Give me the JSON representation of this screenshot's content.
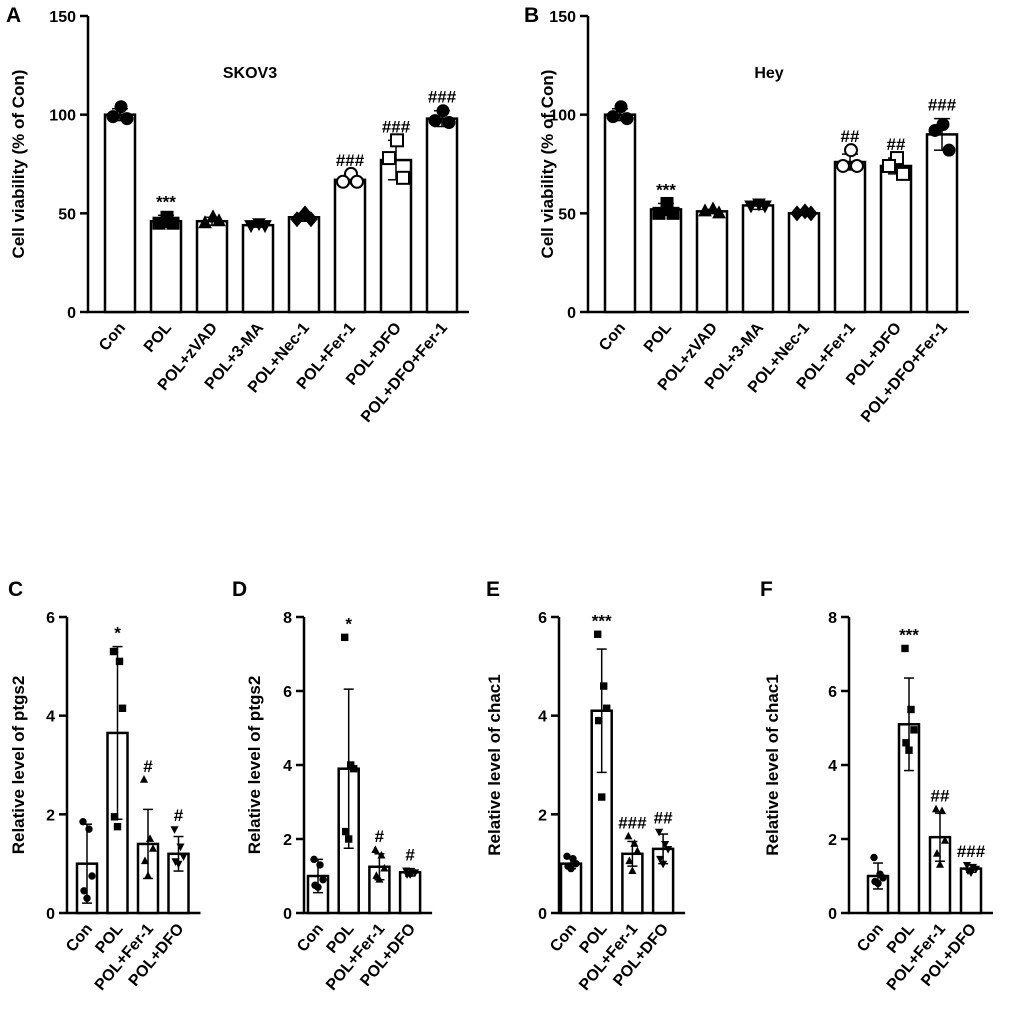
{
  "chart_data": [
    {
      "id": "A",
      "type": "bar",
      "title": "SKOV3",
      "ylabel": "Cell viability (% of Con)",
      "ylim": [
        0,
        150
      ],
      "yticks": [
        0,
        50,
        100,
        150
      ],
      "ytick_labels": [
        "0",
        "50",
        "100",
        "150"
      ],
      "categories": [
        "Con",
        "POL",
        "POL+zVAD",
        "POL+3-MA",
        "POL+Nec-1",
        "POL+Fer-1",
        "POL+DFO",
        "POL+DFO+Fer-1"
      ],
      "values": [
        100,
        46,
        46,
        44,
        48,
        67,
        77,
        98
      ],
      "errors": [
        3,
        3,
        2,
        1,
        2,
        2,
        10,
        4
      ],
      "points": [
        [
          104,
          99,
          98
        ],
        [
          48,
          45,
          45
        ],
        [
          48,
          45,
          46
        ],
        [
          45,
          44,
          44
        ],
        [
          50,
          47,
          47
        ],
        [
          70,
          66,
          66
        ],
        [
          87,
          78,
          68
        ],
        [
          102,
          97,
          96
        ]
      ],
      "marker": [
        "circle",
        "square",
        "triangle",
        "triangle-down",
        "diamond",
        "circle-open",
        "square-open",
        "circle"
      ],
      "annotations": [
        "",
        "***",
        "",
        "",
        "",
        "###",
        "###",
        "###"
      ]
    },
    {
      "id": "B",
      "type": "bar",
      "title": "Hey",
      "ylabel": "Cell viability (% of Con)",
      "ylim": [
        0,
        150
      ],
      "yticks": [
        0,
        50,
        100,
        150
      ],
      "ytick_labels": [
        "0",
        "50",
        "100",
        "150"
      ],
      "categories": [
        "Con",
        "POL",
        "POL+zVAD",
        "POL+3-MA",
        "POL+Nec-1",
        "POL+Fer-1",
        "POL+DFO",
        "POL+DFO+Fer-1"
      ],
      "values": [
        100,
        52,
        51,
        54,
        50,
        76,
        74,
        90
      ],
      "errors": [
        3,
        3,
        1,
        2,
        1,
        4,
        4,
        8
      ],
      "points": [
        [
          104,
          99,
          98
        ],
        [
          55,
          50,
          50
        ],
        [
          52,
          51,
          50
        ],
        [
          55,
          54,
          54
        ],
        [
          51,
          50,
          50
        ],
        [
          82,
          74,
          74
        ],
        [
          78,
          74,
          70
        ],
        [
          95,
          92,
          82
        ]
      ],
      "marker": [
        "circle",
        "square",
        "triangle",
        "triangle-down",
        "diamond",
        "circle-open",
        "square-open",
        "circle"
      ],
      "annotations": [
        "",
        "***",
        "",
        "",
        "",
        "##",
        "##",
        "###"
      ]
    },
    {
      "id": "C",
      "type": "bar",
      "ylabel": "Relative level of ptgs2",
      "ylim": [
        0,
        6
      ],
      "yticks": [
        0,
        2,
        4,
        6
      ],
      "ytick_labels": [
        "0",
        "2",
        "4",
        "6"
      ],
      "categories": [
        "Con",
        "POL",
        "POL+Fer-1",
        "POL+DFO"
      ],
      "values": [
        1.0,
        3.65,
        1.4,
        1.2
      ],
      "errors": [
        0.8,
        1.75,
        0.7,
        0.35
      ],
      "points": [
        [
          1.85,
          1.7,
          0.75,
          0.45,
          0.3
        ],
        [
          5.3,
          5.1,
          4.15,
          1.95,
          1.75
        ],
        [
          2.7,
          1.5,
          1.3,
          1.05,
          0.75
        ],
        [
          1.7,
          1.35,
          1.15,
          1.05,
          1.0
        ]
      ],
      "marker": [
        "circle",
        "square",
        "triangle",
        "triangle-down"
      ],
      "annotations": [
        "",
        "*",
        "#",
        "#"
      ]
    },
    {
      "id": "D",
      "type": "bar",
      "ylabel": "Relative level of ptgs2",
      "ylim": [
        0,
        8
      ],
      "yticks": [
        0,
        2,
        4,
        6,
        8
      ],
      "ytick_labels": [
        "0",
        "2",
        "4",
        "6",
        "8"
      ],
      "categories": [
        "Con",
        "POL",
        "POL+Fer-1",
        "POL+DFO"
      ],
      "values": [
        1.0,
        3.9,
        1.25,
        1.1
      ],
      "errors": [
        0.45,
        2.15,
        0.35,
        0.1
      ],
      "points": [
        [
          1.45,
          1.3,
          0.9,
          0.75,
          0.7
        ],
        [
          7.45,
          4.0,
          3.9,
          2.2,
          2.0
        ],
        [
          1.7,
          1.55,
          1.2,
          1.0,
          0.9
        ],
        [
          1.15,
          1.1,
          1.1,
          1.05,
          1.05
        ]
      ],
      "marker": [
        "circle",
        "square",
        "triangle",
        "triangle-down"
      ],
      "annotations": [
        "",
        "*",
        "#",
        "#"
      ]
    },
    {
      "id": "E",
      "type": "bar",
      "ylabel": "Relative level of chac1",
      "ylim": [
        0,
        6
      ],
      "yticks": [
        0,
        2,
        4,
        6
      ],
      "ytick_labels": [
        "0",
        "2",
        "4",
        "6"
      ],
      "categories": [
        "Con",
        "POL",
        "POL+Fer-1",
        "POL+DFO"
      ],
      "values": [
        1.0,
        4.1,
        1.2,
        1.3
      ],
      "errors": [
        0.1,
        1.25,
        0.25,
        0.3
      ],
      "points": [
        [
          1.15,
          1.1,
          1.0,
          0.95,
          0.9
        ],
        [
          5.65,
          4.6,
          4.15,
          3.9,
          2.35
        ],
        [
          1.55,
          1.4,
          1.25,
          1.05,
          0.85
        ],
        [
          1.65,
          1.4,
          1.3,
          1.1,
          1.0
        ]
      ],
      "marker": [
        "circle",
        "square",
        "triangle",
        "triangle-down"
      ],
      "annotations": [
        "",
        "***",
        "###",
        "##"
      ]
    },
    {
      "id": "F",
      "type": "bar",
      "ylabel": "Relative level of chac1",
      "ylim": [
        0,
        8
      ],
      "yticks": [
        0,
        2,
        4,
        6,
        8
      ],
      "ytick_labels": [
        "0",
        "2",
        "4",
        "6",
        "8"
      ],
      "categories": [
        "Con",
        "POL",
        "POL+Fer-1",
        "POL+DFO"
      ],
      "values": [
        1.0,
        5.1,
        2.05,
        1.2
      ],
      "errors": [
        0.35,
        1.25,
        0.65,
        0.1
      ],
      "points": [
        [
          1.5,
          1.05,
          0.95,
          0.85,
          0.8
        ],
        [
          7.15,
          5.5,
          4.95,
          4.6,
          4.4
        ],
        [
          2.8,
          2.75,
          1.95,
          1.6,
          1.3
        ],
        [
          1.3,
          1.25,
          1.2,
          1.15,
          1.1
        ]
      ],
      "marker": [
        "circle",
        "square",
        "triangle",
        "triangle-down"
      ],
      "annotations": [
        "",
        "***",
        "##",
        "###"
      ]
    }
  ]
}
